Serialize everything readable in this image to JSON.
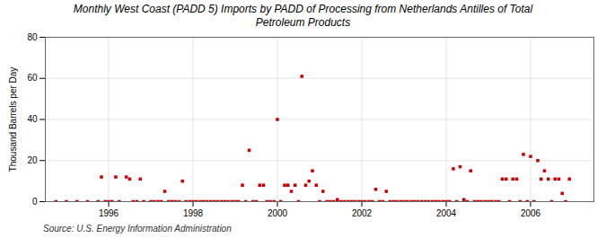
{
  "chart_data": {
    "type": "scatter",
    "title": "Monthly West Coast (PADD 5) Imports by PADD of Processing from Netherlands Antilles of Total\nPetroleum Products",
    "ylabel": "Thousand Barrels per Day",
    "source": "Source: U.S. Energy Information Administration",
    "color": "#cc0000",
    "marker": "square",
    "grid": true,
    "xlim": [
      1994.5,
      2007.5
    ],
    "xticks": [
      1996,
      1998,
      2000,
      2002,
      2004,
      2006
    ],
    "ylim": [
      0,
      80
    ],
    "yticks": [
      0,
      20,
      40,
      60,
      80
    ],
    "x": [
      1994.75,
      1995.0,
      1995.25,
      1995.5,
      1995.75,
      1995.83,
      1995.92,
      1996.0,
      1996.08,
      1996.17,
      1996.25,
      1996.42,
      1996.5,
      1996.58,
      1996.67,
      1996.75,
      1996.83,
      1997.0,
      1997.08,
      1997.17,
      1997.25,
      1997.33,
      1997.42,
      1997.5,
      1997.58,
      1997.67,
      1997.75,
      1997.83,
      1997.92,
      1998.0,
      1998.08,
      1998.17,
      1998.25,
      1998.33,
      1998.42,
      1998.5,
      1998.58,
      1998.67,
      1998.75,
      1998.83,
      1998.92,
      1999.0,
      1999.08,
      1999.17,
      1999.25,
      1999.33,
      1999.42,
      1999.5,
      1999.58,
      1999.67,
      1999.75,
      1999.83,
      1999.92,
      2000.0,
      2000.08,
      2000.17,
      2000.25,
      2000.33,
      2000.42,
      2000.5,
      2000.58,
      2000.67,
      2000.75,
      2000.83,
      2000.92,
      2001.0,
      2001.08,
      2001.17,
      2001.25,
      2001.33,
      2001.42,
      2001.5,
      2001.58,
      2001.67,
      2001.75,
      2001.83,
      2001.92,
      2002.0,
      2002.08,
      2002.17,
      2002.25,
      2002.33,
      2002.42,
      2002.5,
      2002.58,
      2002.67,
      2002.75,
      2002.83,
      2002.92,
      2003.0,
      2003.08,
      2003.17,
      2003.25,
      2003.33,
      2003.42,
      2003.5,
      2003.58,
      2003.67,
      2003.75,
      2003.83,
      2003.92,
      2004.0,
      2004.08,
      2004.17,
      2004.25,
      2004.33,
      2004.42,
      2004.5,
      2004.58,
      2004.67,
      2004.75,
      2004.83,
      2004.92,
      2005.0,
      2005.08,
      2005.17,
      2005.25,
      2005.33,
      2005.42,
      2005.5,
      2005.58,
      2005.67,
      2005.75,
      2005.83,
      2005.92,
      2006.0,
      2006.08,
      2006.17,
      2006.25,
      2006.33,
      2006.42,
      2006.5,
      2006.58,
      2006.67,
      2006.75,
      2006.83,
      2006.92
    ],
    "values": [
      0,
      0,
      0,
      0,
      0,
      12,
      0,
      0,
      0,
      12,
      0,
      12,
      11,
      0,
      0,
      11,
      0,
      0,
      0,
      0,
      0,
      5,
      0,
      0,
      0,
      0,
      10,
      0,
      0,
      0,
      0,
      0,
      0,
      0,
      0,
      0,
      0,
      0,
      0,
      0,
      0,
      0,
      0,
      8,
      0,
      25,
      0,
      0,
      8,
      8,
      0,
      0,
      0,
      40,
      0,
      8,
      8,
      5,
      8,
      0,
      61,
      8,
      10,
      15,
      8,
      0,
      5,
      0,
      0,
      0,
      1,
      0,
      0,
      0,
      0,
      0,
      0,
      0,
      0,
      0,
      0,
      6,
      0,
      0,
      5,
      0,
      0,
      0,
      0,
      0,
      0,
      0,
      0,
      0,
      0,
      0,
      0,
      0,
      0,
      0,
      0,
      0,
      0,
      16,
      0,
      17,
      1,
      0,
      15,
      0,
      0,
      0,
      0,
      0,
      0,
      0,
      0,
      11,
      11,
      0,
      11,
      11,
      0,
      23,
      0,
      22,
      0,
      20,
      11,
      15,
      11,
      0,
      11,
      11,
      4,
      0,
      11
    ]
  }
}
